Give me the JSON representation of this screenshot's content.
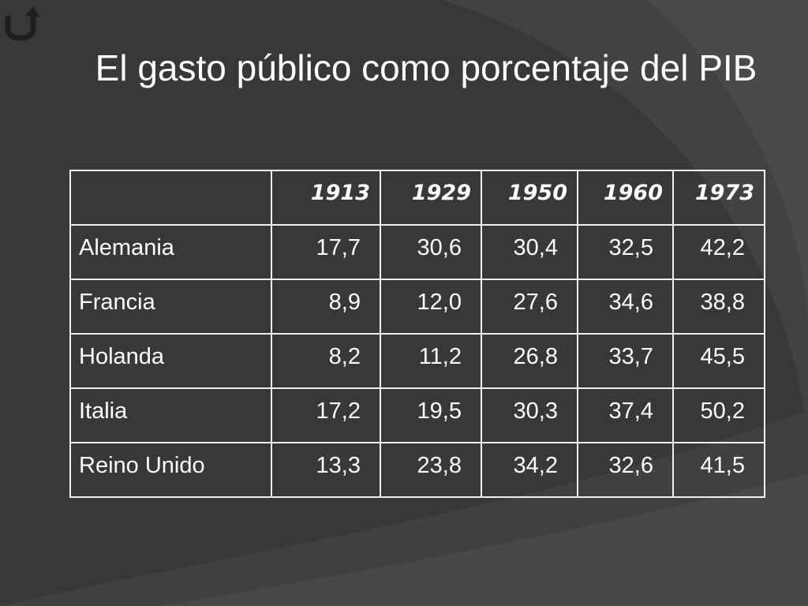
{
  "title": "El gasto público como porcentaje del PIB",
  "table": {
    "header": [
      "1913",
      "1929",
      "1950",
      "1960",
      "1973"
    ],
    "rows": [
      [
        "Alemania",
        "17,7",
        "30,6",
        "30,4",
        "32,5",
        "42,2"
      ],
      [
        "Francia",
        "8,9",
        "12,0",
        "27,6",
        "34,6",
        "38,8"
      ],
      [
        "Holanda",
        "8,2",
        "11,2",
        "26,8",
        "33,7",
        "45,5"
      ],
      [
        "Italia",
        "17,2",
        "19,5",
        "30,3",
        "37,4",
        "50,2"
      ],
      [
        "Reino Unido",
        "13,3",
        "23,8",
        "34,2",
        "32,6",
        "41,5"
      ]
    ]
  }
}
